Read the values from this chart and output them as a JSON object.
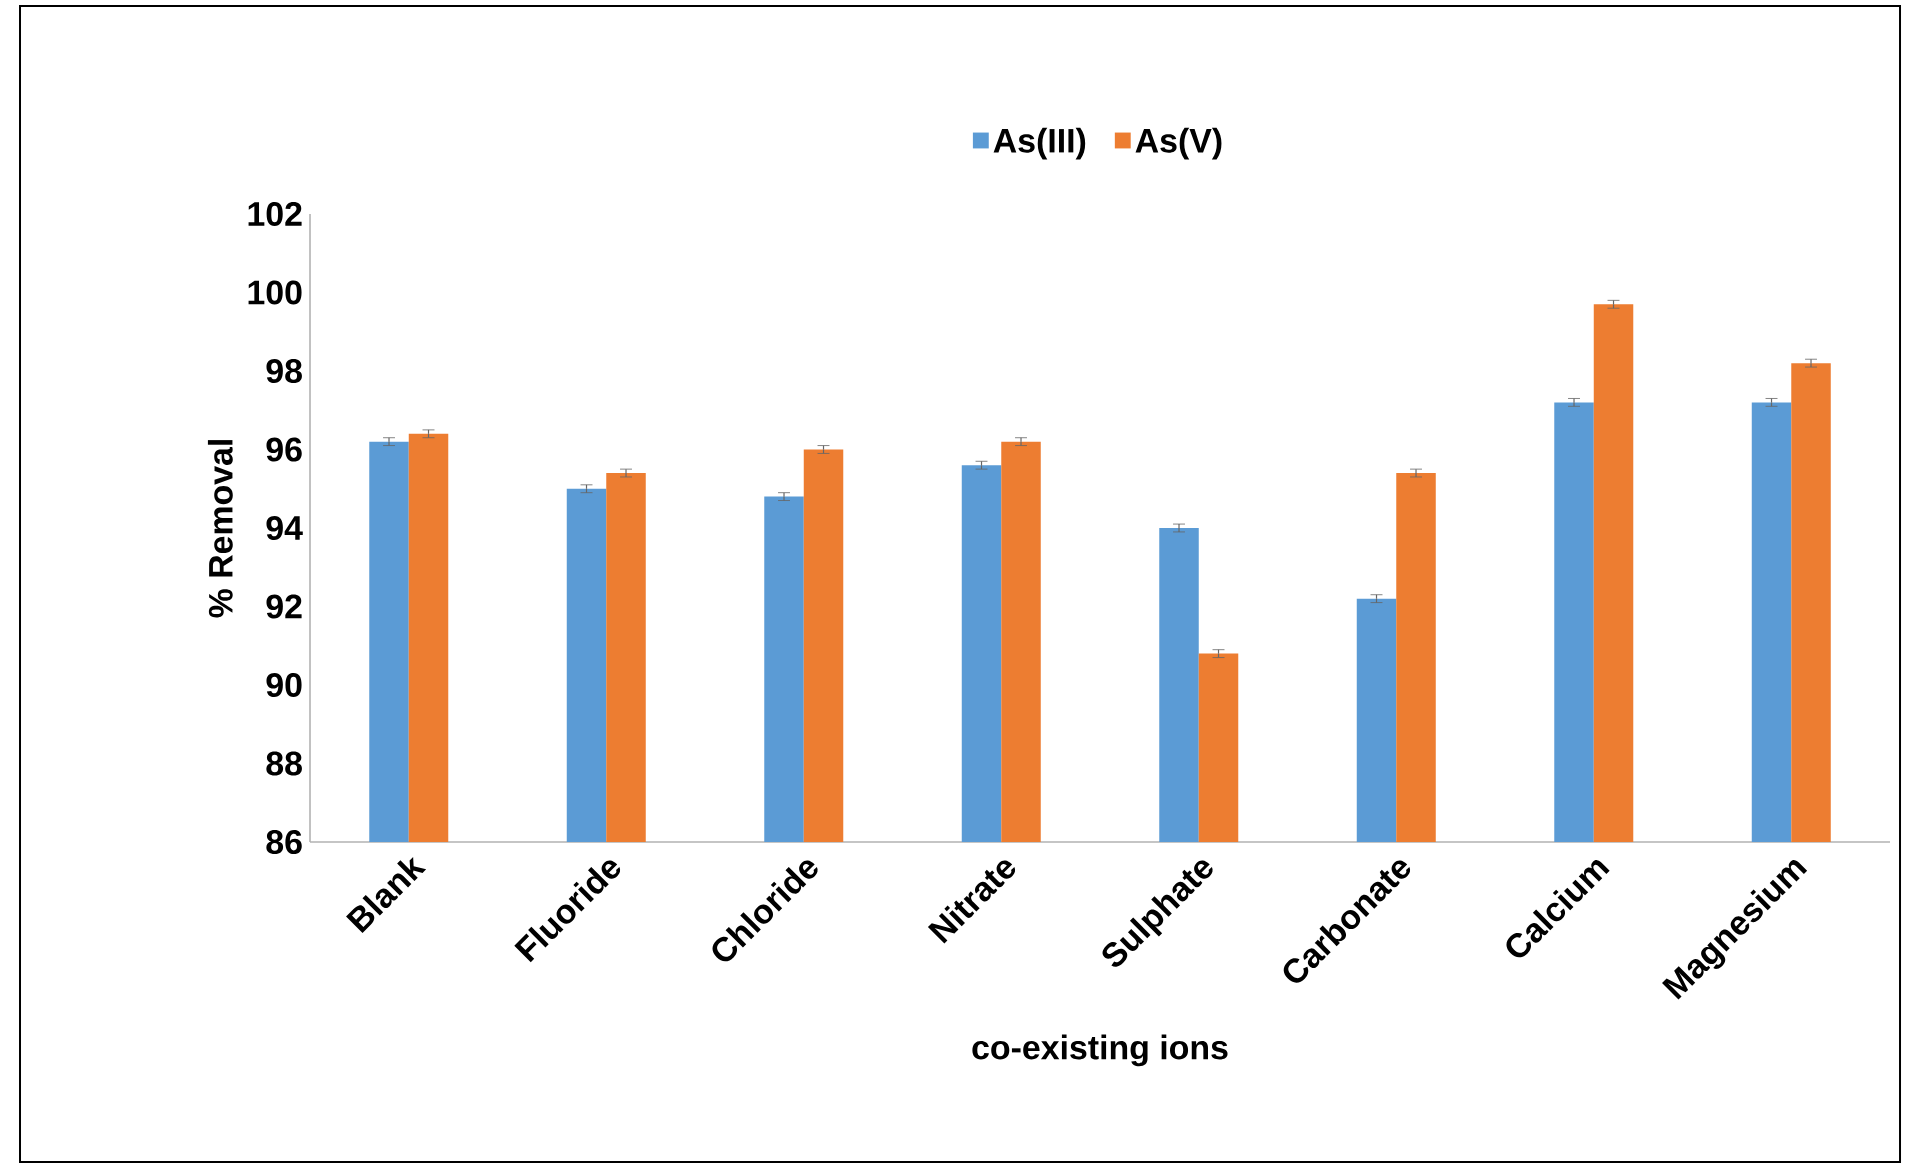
{
  "chart_data": {
    "type": "bar",
    "categories": [
      "Blank",
      "Fluoride",
      "Chloride",
      "Nitrate",
      "Sulphate",
      "Carbonate",
      "Calcium",
      "Magnesium"
    ],
    "series": [
      {
        "name": "As(III)",
        "color": "#5b9bd5",
        "values": [
          96.2,
          95.0,
          94.8,
          95.6,
          94.0,
          92.2,
          97.2,
          97.2
        ],
        "errors": [
          0.1,
          0.1,
          0.1,
          0.1,
          0.1,
          0.1,
          0.1,
          0.1
        ]
      },
      {
        "name": "As(V)",
        "color": "#ed7d31",
        "values": [
          96.4,
          95.4,
          96.0,
          96.2,
          90.8,
          95.4,
          99.7,
          98.2
        ],
        "errors": [
          0.1,
          0.1,
          0.1,
          0.1,
          0.1,
          0.1,
          0.1,
          0.1
        ]
      }
    ],
    "xlabel": "co-existing ions",
    "ylabel": "% Removal",
    "ylim": [
      86,
      102
    ],
    "yticks": [
      86,
      88,
      90,
      92,
      94,
      96,
      98,
      100,
      102
    ],
    "legend": "top"
  }
}
